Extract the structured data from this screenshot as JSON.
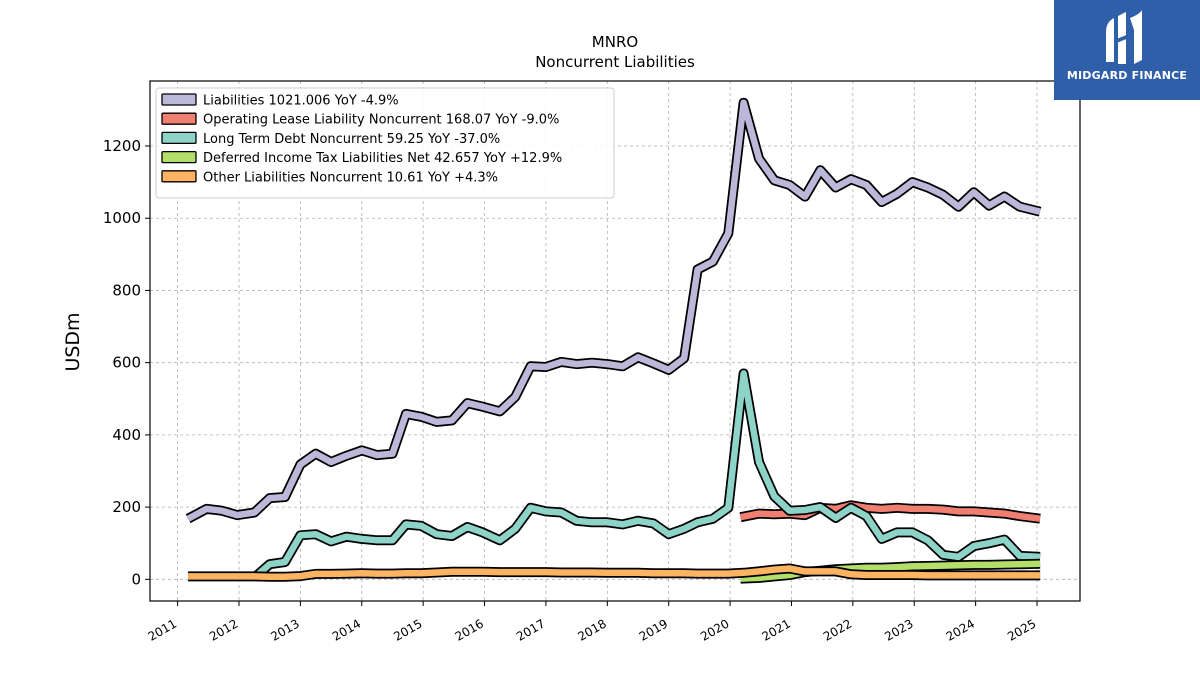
{
  "brand": {
    "name": "MIDGARD FINANCE",
    "bg_color": "#2f5fa8"
  },
  "chart_data": {
    "type": "line",
    "title": "MNRO",
    "subtitle": "Noncurrent  Liabilities",
    "ylabel": "USDm",
    "xlabel": "",
    "xlim": [
      2010.55,
      2025.7
    ],
    "ylim": [
      -60,
      1380
    ],
    "yticks": [
      0,
      200,
      400,
      600,
      800,
      1000,
      1200
    ],
    "xticks": [
      "2011",
      "2012",
      "2013",
      "2014",
      "2015",
      "2016",
      "2017",
      "2018",
      "2019",
      "2020",
      "2021",
      "2022",
      "2023",
      "2024",
      "2025"
    ],
    "grid": true,
    "legend_position": "top-left",
    "series": [
      {
        "name": "Liabilities",
        "legend": "Liabilities  1021.006 YoY -4.9%",
        "color": "#bcb8d9",
        "x": [
          2011.17,
          2011.47,
          2011.72,
          2011.97,
          2012.25,
          2012.5,
          2012.75,
          2013.0,
          2013.25,
          2013.5,
          2013.75,
          2014.0,
          2014.25,
          2014.5,
          2014.72,
          2014.97,
          2015.22,
          2015.47,
          2015.72,
          2015.97,
          2016.25,
          2016.5,
          2016.75,
          2017.0,
          2017.25,
          2017.5,
          2017.75,
          2018.0,
          2018.25,
          2018.5,
          2018.75,
          2019.0,
          2019.25,
          2019.47,
          2019.72,
          2019.97,
          2020.22,
          2020.47,
          2020.72,
          2020.97,
          2021.22,
          2021.47,
          2021.72,
          2021.97,
          2022.22,
          2022.47,
          2022.72,
          2022.97,
          2023.22,
          2023.47,
          2023.72,
          2023.97,
          2024.22,
          2024.47,
          2024.72,
          2025.05
        ],
        "values": [
          168,
          195,
          190,
          178,
          185,
          225,
          228,
          318,
          348,
          325,
          342,
          357,
          344,
          348,
          458,
          450,
          436,
          440,
          488,
          478,
          465,
          505,
          590,
          588,
          602,
          596,
          600,
          596,
          590,
          615,
          598,
          580,
          612,
          858,
          880,
          958,
          1320,
          1165,
          1105,
          1092,
          1060,
          1133,
          1085,
          1108,
          1092,
          1045,
          1068,
          1100,
          1085,
          1065,
          1032,
          1072,
          1035,
          1060,
          1032,
          1018
        ]
      },
      {
        "name": "Operating Lease Liability Noncurrent",
        "legend": "Operating Lease Liability Noncurrent  168.07 YoY -9.0%",
        "color": "#f07f72",
        "x": [
          2020.17,
          2020.47,
          2020.72,
          2020.97,
          2021.22,
          2021.47,
          2021.72,
          2021.97,
          2022.22,
          2022.47,
          2022.72,
          2022.97,
          2023.22,
          2023.47,
          2023.72,
          2023.97,
          2024.22,
          2024.47,
          2024.72,
          2025.05
        ],
        "values": [
          172,
          182,
          180,
          182,
          178,
          198,
          195,
          205,
          198,
          195,
          198,
          195,
          195,
          193,
          188,
          188,
          185,
          182,
          175,
          168
        ]
      },
      {
        "name": "Long Term Debt Noncurrent",
        "legend": "Long Term Debt Noncurrent  59.25 YoY -37.0%",
        "color": "#8dd3c7",
        "x": [
          2012.25,
          2012.5,
          2012.75,
          2013.0,
          2013.25,
          2013.5,
          2013.75,
          2014.0,
          2014.25,
          2014.5,
          2014.72,
          2014.97,
          2015.22,
          2015.47,
          2015.72,
          2015.97,
          2016.25,
          2016.5,
          2016.75,
          2017.0,
          2017.25,
          2017.5,
          2017.75,
          2018.0,
          2018.25,
          2018.5,
          2018.75,
          2019.0,
          2019.25,
          2019.47,
          2019.72,
          2019.97,
          2020.22,
          2020.47,
          2020.72,
          2020.97,
          2021.22,
          2021.47,
          2021.72,
          2021.97,
          2022.22,
          2022.47,
          2022.72,
          2022.97,
          2023.22,
          2023.47,
          2023.72,
          2023.97,
          2024.22,
          2024.47,
          2024.72,
          2025.05
        ],
        "values": [
          5,
          42,
          48,
          122,
          125,
          105,
          118,
          112,
          108,
          108,
          152,
          148,
          125,
          120,
          145,
          130,
          108,
          140,
          198,
          188,
          185,
          162,
          158,
          158,
          152,
          162,
          155,
          125,
          140,
          158,
          168,
          198,
          570,
          325,
          230,
          190,
          192,
          200,
          170,
          198,
          175,
          112,
          130,
          130,
          108,
          68,
          62,
          92,
          100,
          110,
          65,
          62
        ]
      },
      {
        "name": "Deferred Income Tax Liabilities Net",
        "legend": "Deferred Income Tax Liabilities Net  42.657 YoY +12.9%",
        "color": "#b3de69",
        "x": [
          2020.17,
          2020.47,
          2020.72,
          2020.97,
          2021.22,
          2021.47,
          2021.72,
          2021.97,
          2022.22,
          2022.47,
          2022.72,
          2022.97,
          2023.22,
          2023.47,
          2023.72,
          2023.97,
          2024.22,
          2024.47,
          2024.72,
          2025.05
        ],
        "values": [
          2,
          4,
          8,
          12,
          20,
          24,
          28,
          30,
          32,
          32,
          34,
          36,
          37,
          38,
          39,
          40,
          40,
          41,
          42,
          43
        ]
      },
      {
        "name": "Other Liabilities Noncurrent",
        "legend": "Other Liabilities Noncurrent  10.61 YoY +4.3%",
        "color": "#fdb462",
        "x": [
          2011.17,
          2011.47,
          2011.72,
          2011.97,
          2012.25,
          2012.5,
          2012.75,
          2013.0,
          2013.25,
          2013.5,
          2013.75,
          2014.0,
          2014.25,
          2014.5,
          2014.72,
          2014.97,
          2015.22,
          2015.47,
          2015.72,
          2015.97,
          2016.25,
          2016.5,
          2016.75,
          2017.0,
          2017.25,
          2017.5,
          2017.75,
          2018.0,
          2018.25,
          2018.5,
          2018.75,
          2019.0,
          2019.25,
          2019.47,
          2019.72,
          2019.97,
          2020.22,
          2020.47,
          2020.72,
          2020.97,
          2021.22,
          2021.47,
          2021.72,
          2021.97,
          2022.22,
          2022.47,
          2022.72,
          2022.97,
          2023.22,
          2023.47,
          2023.72,
          2023.97,
          2024.22,
          2024.47,
          2024.72,
          2025.05
        ],
        "values": [
          8,
          8,
          8,
          8,
          8,
          7,
          7,
          9,
          15,
          15,
          16,
          17,
          16,
          16,
          17,
          17,
          19,
          21,
          21,
          21,
          20,
          20,
          20,
          20,
          19,
          19,
          19,
          18,
          18,
          18,
          17,
          17,
          17,
          16,
          16,
          16,
          18,
          22,
          27,
          30,
          22,
          22,
          22,
          14,
          12,
          12,
          12,
          12,
          11,
          11,
          11,
          11,
          11,
          11,
          11,
          11
        ]
      }
    ]
  }
}
